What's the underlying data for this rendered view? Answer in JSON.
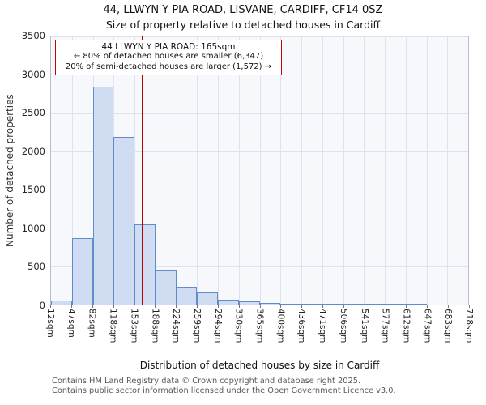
{
  "footer": {
    "line1": "Contains HM Land Registry data © Crown copyright and database right 2025.",
    "line2": "Contains public sector information licensed under the Open Government Licence v3.0."
  },
  "chart_data": {
    "type": "bar",
    "title": "44, LLWYN Y PIA ROAD, LISVANE, CARDIFF, CF14 0SZ",
    "subtitle": "Size of property relative to detached houses in Cardiff",
    "xlabel": "Distribution of detached houses by size in Cardiff",
    "ylabel": "Number of detached properties",
    "bin_edges_sqm": [
      12,
      47,
      82,
      118,
      153,
      188,
      224,
      259,
      294,
      330,
      365,
      400,
      436,
      471,
      506,
      541,
      577,
      612,
      647,
      683,
      718
    ],
    "x_tick_labels": [
      "12sqm",
      "47sqm",
      "82sqm",
      "118sqm",
      "153sqm",
      "188sqm",
      "224sqm",
      "259sqm",
      "294sqm",
      "330sqm",
      "365sqm",
      "400sqm",
      "436sqm",
      "471sqm",
      "506sqm",
      "541sqm",
      "577sqm",
      "612sqm",
      "647sqm",
      "683sqm",
      "718sqm"
    ],
    "values": [
      50,
      870,
      2840,
      2190,
      1050,
      460,
      230,
      160,
      60,
      40,
      25,
      15,
      10,
      5,
      3,
      2,
      1,
      1,
      0,
      0
    ],
    "ylim": [
      0,
      3500
    ],
    "y_ticks": [
      0,
      500,
      1000,
      1500,
      2000,
      2500,
      3000,
      3500
    ],
    "grid": true,
    "marker_value_sqm": 165,
    "annotations": {
      "line1": "44 LLWYN Y PIA ROAD: 165sqm",
      "line2": "← 80% of detached houses are smaller (6,347)",
      "line3": "20% of semi-detached houses are larger (1,572) →"
    },
    "colors": {
      "bar_fill": "#cfdcf1",
      "bar_border": "#5f8dc9",
      "marker": "#bb0000",
      "annotation_border": "#cc0000",
      "grid": "#dde3ee",
      "plot_bg": "#f6f8fc",
      "frame": "#b7bfca"
    }
  }
}
